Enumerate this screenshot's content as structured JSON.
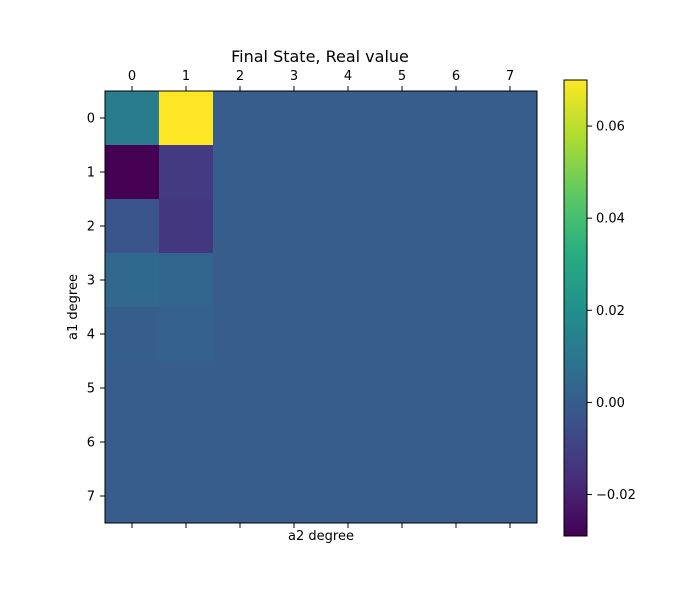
{
  "chart_data": {
    "type": "heatmap",
    "title": "Final State, Real value",
    "xlabel": "a2 degree",
    "ylabel": "a1 degree",
    "x_ticks": [
      "0",
      "1",
      "2",
      "3",
      "4",
      "5",
      "6",
      "7"
    ],
    "y_ticks": [
      "0",
      "1",
      "2",
      "3",
      "4",
      "5",
      "6",
      "7"
    ],
    "x_axis_position": "top",
    "colormap": "viridis",
    "vmin": -0.029,
    "vmax": 0.07,
    "colorbar_ticks": [
      -0.02,
      0.0,
      0.02,
      0.04,
      0.06
    ],
    "colorbar_tick_labels": [
      "−0.02",
      "0.00",
      "0.02",
      "0.04",
      "0.06"
    ],
    "values": [
      [
        0.012,
        0.07,
        0.0,
        0.0,
        0.0,
        0.0,
        0.0,
        0.0
      ],
      [
        -0.029,
        -0.012,
        0.0,
        0.0,
        0.0,
        0.0,
        0.0,
        0.0
      ],
      [
        -0.003,
        -0.013,
        0.0,
        0.0,
        0.0,
        0.0,
        0.0,
        0.0
      ],
      [
        0.004,
        0.003,
        0.0,
        0.0,
        0.0,
        0.0,
        0.0,
        0.0
      ],
      [
        0.0005,
        0.0015,
        0.0,
        0.0,
        0.0,
        0.0,
        0.0,
        0.0
      ],
      [
        0.0,
        0.0,
        0.0,
        0.0,
        0.0,
        0.0,
        0.0,
        0.0
      ],
      [
        0.0,
        0.0,
        0.0,
        0.0,
        0.0,
        0.0,
        0.0,
        0.0
      ],
      [
        0.0,
        0.0,
        0.0,
        0.0,
        0.0,
        0.0,
        0.0,
        0.0
      ]
    ]
  }
}
